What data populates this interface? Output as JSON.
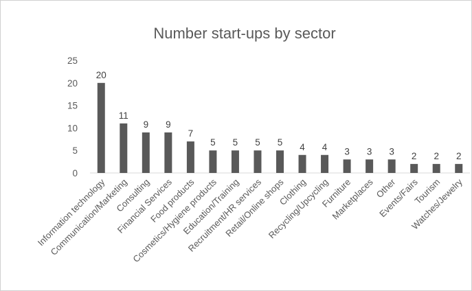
{
  "chart_data": {
    "type": "bar",
    "title": "Number start-ups by sector",
    "categories": [
      "Information technology",
      "Communication/Marketing",
      "Consulting",
      "Financial Services",
      "Food products",
      "Cosmetics/Hygiene products",
      "Education/Training",
      "Recruitment/HR services",
      "Retail/Online shops",
      "Clothing",
      "Recycling/Upcycling",
      "Furniture",
      "Marketplaces",
      "Other",
      "Events/Fairs",
      "Tourism",
      "Watches/Jewelry"
    ],
    "values": [
      20,
      11,
      9,
      9,
      7,
      5,
      5,
      5,
      5,
      4,
      4,
      3,
      3,
      3,
      2,
      2,
      2
    ],
    "ylim": [
      0,
      25
    ],
    "yticks": [
      0,
      5,
      10,
      15,
      20,
      25
    ],
    "xlabel": "",
    "ylabel": "",
    "grid": false,
    "data_labels": true,
    "bar_color": "#595959",
    "axis_color": "#d9d9d9"
  }
}
